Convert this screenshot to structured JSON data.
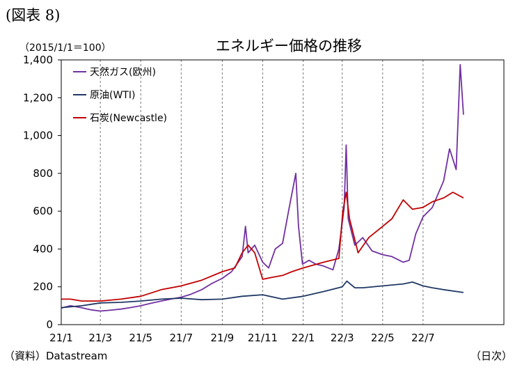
{
  "figure_label": "(図表 8)",
  "unit_label": "（2015/1/1＝100）",
  "source_label": "（資料）Datastream",
  "frequency_label": "（日次）",
  "chart_data": {
    "type": "line",
    "title": "エネルギー価格の推移",
    "xlabel": "",
    "ylabel": "",
    "ylim": [
      0,
      1400
    ],
    "yticks": [
      0,
      200,
      400,
      600,
      800,
      1000,
      1200,
      1400
    ],
    "ytick_labels": [
      "0",
      "200",
      "400",
      "600",
      "800",
      "1,000",
      "1,200",
      "1,400"
    ],
    "xlim": [
      "2021-01-01",
      "2022-10-31"
    ],
    "xticks": [
      "2021-01-01",
      "2021-03-01",
      "2021-05-01",
      "2021-07-01",
      "2021-09-01",
      "2021-11-01",
      "2022-01-01",
      "2022-03-01",
      "2022-05-01",
      "2022-07-01"
    ],
    "xtick_labels": [
      "21/1",
      "21/3",
      "21/5",
      "21/7",
      "21/9",
      "21/11",
      "22/1",
      "22/3",
      "22/5",
      "22/7"
    ],
    "grid": "vertical dashed",
    "legend_position": "top-left",
    "series": [
      {
        "name": "天然ガス(欧州)",
        "color": "#7030a0",
        "points": [
          [
            "2021-01-01",
            88
          ],
          [
            "2021-01-15",
            100
          ],
          [
            "2021-01-31",
            90
          ],
          [
            "2021-02-15",
            78
          ],
          [
            "2021-03-01",
            72
          ],
          [
            "2021-03-15",
            76
          ],
          [
            "2021-04-01",
            82
          ],
          [
            "2021-04-15",
            90
          ],
          [
            "2021-05-01",
            100
          ],
          [
            "2021-05-15",
            112
          ],
          [
            "2021-06-01",
            125
          ],
          [
            "2021-06-15",
            135
          ],
          [
            "2021-07-01",
            145
          ],
          [
            "2021-07-15",
            160
          ],
          [
            "2021-08-01",
            185
          ],
          [
            "2021-08-15",
            215
          ],
          [
            "2021-09-01",
            245
          ],
          [
            "2021-09-15",
            280
          ],
          [
            "2021-10-01",
            360
          ],
          [
            "2021-10-06",
            520
          ],
          [
            "2021-10-10",
            380
          ],
          [
            "2021-10-20",
            420
          ],
          [
            "2021-11-01",
            330
          ],
          [
            "2021-11-10",
            300
          ],
          [
            "2021-11-20",
            400
          ],
          [
            "2021-12-01",
            430
          ],
          [
            "2021-12-10",
            600
          ],
          [
            "2021-12-21",
            800
          ],
          [
            "2021-12-25",
            520
          ],
          [
            "2021-12-31",
            320
          ],
          [
            "2022-01-10",
            340
          ],
          [
            "2022-01-20",
            320
          ],
          [
            "2022-02-01",
            310
          ],
          [
            "2022-02-15",
            290
          ],
          [
            "2022-02-24",
            400
          ],
          [
            "2022-03-04",
            620
          ],
          [
            "2022-03-07",
            950
          ],
          [
            "2022-03-10",
            560
          ],
          [
            "2022-03-20",
            420
          ],
          [
            "2022-04-01",
            460
          ],
          [
            "2022-04-15",
            390
          ],
          [
            "2022-05-01",
            370
          ],
          [
            "2022-05-15",
            360
          ],
          [
            "2022-06-01",
            330
          ],
          [
            "2022-06-10",
            340
          ],
          [
            "2022-06-20",
            480
          ],
          [
            "2022-07-01",
            570
          ],
          [
            "2022-07-15",
            620
          ],
          [
            "2022-08-01",
            760
          ],
          [
            "2022-08-10",
            930
          ],
          [
            "2022-08-20",
            820
          ],
          [
            "2022-08-26",
            1375
          ],
          [
            "2022-08-31",
            1110
          ]
        ]
      },
      {
        "name": "原油(WTI)",
        "color": "#1f3864",
        "points": [
          [
            "2021-01-01",
            90
          ],
          [
            "2021-02-01",
            100
          ],
          [
            "2021-03-01",
            115
          ],
          [
            "2021-04-01",
            118
          ],
          [
            "2021-05-01",
            125
          ],
          [
            "2021-06-01",
            135
          ],
          [
            "2021-07-01",
            140
          ],
          [
            "2021-08-01",
            132
          ],
          [
            "2021-09-01",
            135
          ],
          [
            "2021-10-01",
            150
          ],
          [
            "2021-11-01",
            158
          ],
          [
            "2021-12-01",
            135
          ],
          [
            "2022-01-01",
            150
          ],
          [
            "2022-02-01",
            175
          ],
          [
            "2022-03-01",
            200
          ],
          [
            "2022-03-08",
            230
          ],
          [
            "2022-03-20",
            195
          ],
          [
            "2022-04-01",
            195
          ],
          [
            "2022-05-01",
            205
          ],
          [
            "2022-06-01",
            215
          ],
          [
            "2022-06-15",
            225
          ],
          [
            "2022-07-01",
            205
          ],
          [
            "2022-07-15",
            195
          ],
          [
            "2022-08-01",
            185
          ],
          [
            "2022-08-31",
            170
          ]
        ]
      },
      {
        "name": "石炭(Newcastle)",
        "color": "#c00000",
        "points": [
          [
            "2021-01-01",
            135
          ],
          [
            "2021-01-15",
            135
          ],
          [
            "2021-02-01",
            125
          ],
          [
            "2021-03-01",
            125
          ],
          [
            "2021-04-01",
            135
          ],
          [
            "2021-05-01",
            150
          ],
          [
            "2021-06-01",
            185
          ],
          [
            "2021-07-01",
            205
          ],
          [
            "2021-08-01",
            235
          ],
          [
            "2021-09-01",
            280
          ],
          [
            "2021-09-20",
            300
          ],
          [
            "2021-10-01",
            380
          ],
          [
            "2021-10-10",
            420
          ],
          [
            "2021-10-20",
            380
          ],
          [
            "2021-11-01",
            240
          ],
          [
            "2021-11-15",
            250
          ],
          [
            "2021-12-01",
            260
          ],
          [
            "2021-12-15",
            280
          ],
          [
            "2022-01-01",
            300
          ],
          [
            "2022-02-01",
            330
          ],
          [
            "2022-02-24",
            350
          ],
          [
            "2022-03-02",
            600
          ],
          [
            "2022-03-07",
            700
          ],
          [
            "2022-03-12",
            560
          ],
          [
            "2022-03-25",
            380
          ],
          [
            "2022-04-10",
            460
          ],
          [
            "2022-05-01",
            520
          ],
          [
            "2022-05-15",
            560
          ],
          [
            "2022-06-01",
            660
          ],
          [
            "2022-06-15",
            610
          ],
          [
            "2022-07-01",
            620
          ],
          [
            "2022-07-15",
            650
          ],
          [
            "2022-08-01",
            670
          ],
          [
            "2022-08-15",
            700
          ],
          [
            "2022-08-31",
            670
          ]
        ]
      }
    ]
  }
}
